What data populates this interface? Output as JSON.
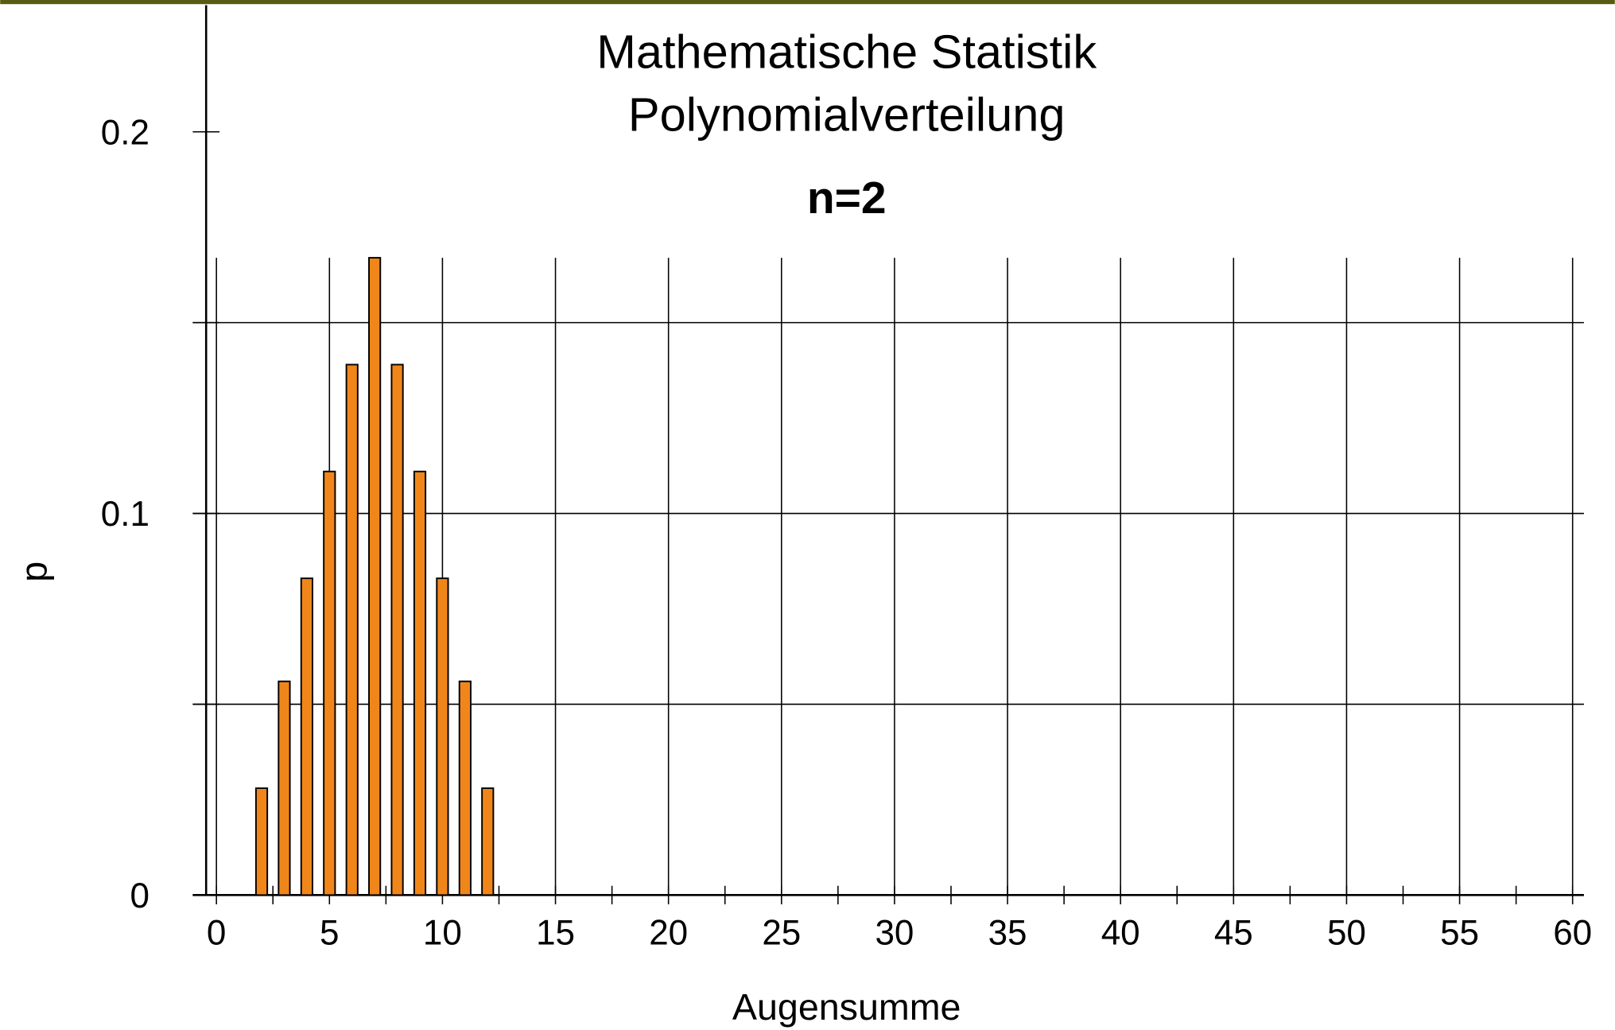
{
  "chart_data": {
    "type": "bar",
    "title": "Mathematische Statistik",
    "subtitle": "Polynomialverteilung",
    "annotation": "n=2",
    "x_label": "Augensumme",
    "y_label": "p",
    "x": [
      2,
      3,
      4,
      5,
      6,
      7,
      8,
      9,
      10,
      11,
      12
    ],
    "values": [
      0.028,
      0.056,
      0.083,
      0.111,
      0.139,
      0.167,
      0.139,
      0.111,
      0.083,
      0.056,
      0.028
    ],
    "color": "#f0861a",
    "xlim": [
      0,
      60
    ],
    "xticks": [
      0,
      5,
      10,
      15,
      20,
      25,
      30,
      35,
      40,
      45,
      50,
      55,
      60
    ],
    "xminor_ticks": [
      2.5,
      7.5,
      12.5,
      17.5,
      22.5,
      27.5,
      32.5,
      37.5,
      42.5,
      47.5,
      52.5,
      57.5
    ],
    "ylim": [
      0,
      0.2
    ],
    "yticks": [
      0,
      0.1,
      0.2
    ],
    "yminor_ticks": [
      0.05,
      0.15
    ],
    "grid": true
  }
}
